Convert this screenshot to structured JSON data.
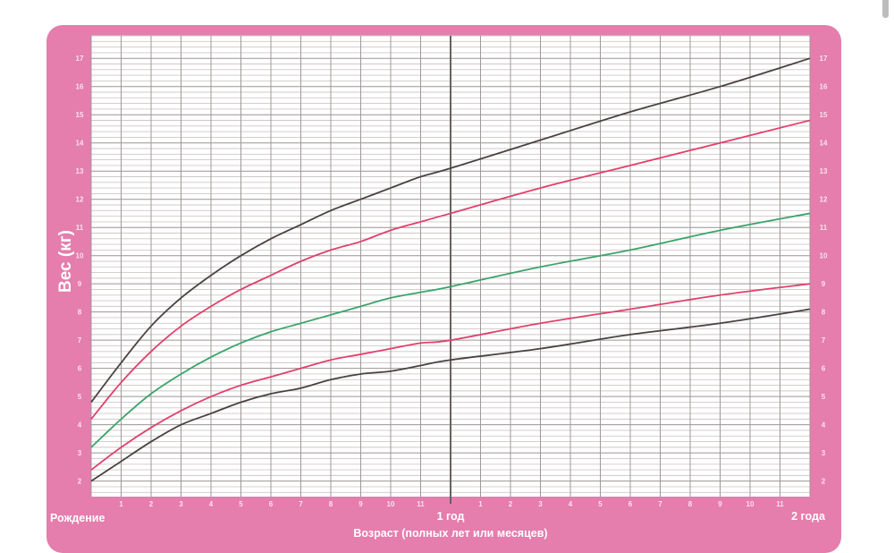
{
  "chart_data": {
    "type": "line",
    "ylabel": "Вес (кг)",
    "xlabel": "Возраст (полных лет или месяцев)",
    "x_start_label": "Рождение",
    "x_year_labels": [
      "1 год",
      "2 года"
    ],
    "x_tick_labels": [
      "1",
      "2",
      "3",
      "4",
      "5",
      "6",
      "7",
      "8",
      "9",
      "10",
      "11",
      "",
      "1",
      "2",
      "3",
      "4",
      "5",
      "6",
      "7",
      "8",
      "9",
      "10",
      "11"
    ],
    "y_tick_labels": [
      "2",
      "3",
      "4",
      "5",
      "6",
      "7",
      "8",
      "9",
      "10",
      "11",
      "12",
      "13",
      "14",
      "15",
      "16",
      "17"
    ],
    "xlim_months": [
      0,
      24
    ],
    "ylim": [
      1.45,
      17.8
    ],
    "grid": true,
    "colors": {
      "background": "#e57dad",
      "plot": "#ffffff",
      "outer": "#4a4242",
      "mid": "#e0416c",
      "median": "#3aa46a"
    },
    "x": [
      0,
      1,
      2,
      3,
      4,
      5,
      6,
      7,
      8,
      9,
      10,
      11,
      12,
      15,
      18,
      21,
      24
    ],
    "series": [
      {
        "color": "#4a4242",
        "values": [
          4.8,
          6.2,
          7.5,
          8.5,
          9.3,
          10.0,
          10.6,
          11.1,
          11.6,
          12.0,
          12.4,
          12.8,
          13.1,
          14.1,
          15.1,
          16.0,
          17.0
        ]
      },
      {
        "color": "#e0416c",
        "values": [
          4.2,
          5.5,
          6.6,
          7.5,
          8.2,
          8.8,
          9.3,
          9.8,
          10.2,
          10.5,
          10.9,
          11.2,
          11.5,
          12.4,
          13.2,
          14.0,
          14.8
        ]
      },
      {
        "color": "#3aa46a",
        "values": [
          3.2,
          4.2,
          5.1,
          5.8,
          6.4,
          6.9,
          7.3,
          7.6,
          7.9,
          8.2,
          8.5,
          8.7,
          8.9,
          9.6,
          10.2,
          10.9,
          11.5
        ]
      },
      {
        "color": "#e0416c",
        "values": [
          2.4,
          3.2,
          3.9,
          4.5,
          5.0,
          5.4,
          5.7,
          6.0,
          6.3,
          6.5,
          6.7,
          6.9,
          7.0,
          7.6,
          8.1,
          8.6,
          9.0
        ]
      },
      {
        "color": "#4a4242",
        "values": [
          2.0,
          2.7,
          3.4,
          4.0,
          4.4,
          4.8,
          5.1,
          5.3,
          5.6,
          5.8,
          5.9,
          6.1,
          6.3,
          6.7,
          7.2,
          7.6,
          8.1
        ]
      }
    ]
  }
}
